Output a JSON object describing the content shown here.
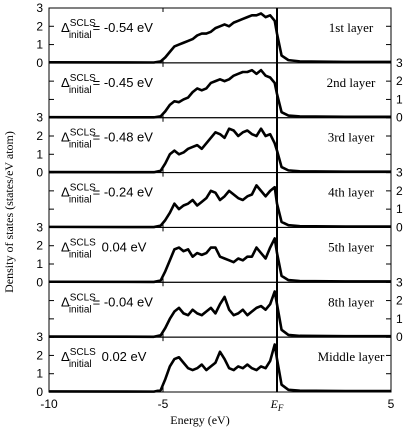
{
  "chart_data": {
    "type": "line",
    "xlabel": "Energy (eV)",
    "ylabel": "Density of states (states/eV atom)",
    "xlim": [
      -10,
      5
    ],
    "ylim": [
      0,
      3
    ],
    "x_ticks": [
      "-10",
      "-5",
      "0",
      "5"
    ],
    "x_tick_values": [
      -10,
      -5,
      0,
      5
    ],
    "fermi_label": "E",
    "fermi_sub": "F",
    "fermi_energy": 0,
    "y_tick_labels": [
      "0",
      "1",
      "2",
      "3"
    ],
    "grid": false,
    "annotation_prefix": "Δ",
    "annotation_sup": "SCLS",
    "annotation_sub": "initial",
    "panels": [
      {
        "name": "1st layer",
        "shift": "= -0.54 eV",
        "y_axis_side": "left",
        "x": [
          -5.4,
          -5.1,
          -4.9,
          -4.7,
          -4.5,
          -4.3,
          -4.1,
          -3.9,
          -3.7,
          -3.5,
          -3.3,
          -3.1,
          -2.9,
          -2.7,
          -2.5,
          -2.3,
          -2.1,
          -1.9,
          -1.7,
          -1.5,
          -1.3,
          -1.1,
          -0.9,
          -0.7,
          -0.5,
          -0.3,
          -0.1,
          0.0,
          0.2,
          0.5,
          1.0,
          3.0,
          5.0
        ],
        "y": [
          0.02,
          0.08,
          0.3,
          0.6,
          0.9,
          1.0,
          1.1,
          1.2,
          1.3,
          1.5,
          1.6,
          1.6,
          1.7,
          1.9,
          2.0,
          2.1,
          2.0,
          2.2,
          2.3,
          2.4,
          2.5,
          2.6,
          2.6,
          2.7,
          2.5,
          2.6,
          2.3,
          1.6,
          0.4,
          0.15,
          0.08,
          0.05,
          0.05
        ]
      },
      {
        "name": "2nd layer",
        "shift": "= -0.45 eV",
        "y_axis_side": "right",
        "x": [
          -5.4,
          -5.1,
          -4.9,
          -4.7,
          -4.5,
          -4.3,
          -4.1,
          -3.9,
          -3.7,
          -3.5,
          -3.3,
          -3.1,
          -2.9,
          -2.7,
          -2.5,
          -2.3,
          -2.1,
          -1.9,
          -1.7,
          -1.5,
          -1.3,
          -1.1,
          -0.9,
          -0.7,
          -0.5,
          -0.3,
          -0.1,
          0.0,
          0.2,
          0.5,
          1.0,
          3.0,
          5.0
        ],
        "y": [
          0.02,
          0.08,
          0.35,
          0.7,
          0.9,
          0.85,
          1.0,
          1.1,
          1.4,
          1.6,
          1.5,
          1.6,
          1.9,
          2.0,
          2.1,
          2.0,
          2.1,
          2.3,
          2.4,
          2.5,
          2.5,
          2.6,
          2.4,
          2.6,
          2.3,
          2.2,
          1.9,
          1.3,
          0.3,
          0.12,
          0.07,
          0.05,
          0.05
        ]
      },
      {
        "name": "3rd layer",
        "shift": "= -0.48 eV",
        "y_axis_side": "left",
        "x": [
          -5.4,
          -5.1,
          -4.9,
          -4.7,
          -4.5,
          -4.3,
          -4.1,
          -3.9,
          -3.7,
          -3.5,
          -3.3,
          -3.1,
          -2.9,
          -2.7,
          -2.5,
          -2.3,
          -2.1,
          -1.9,
          -1.7,
          -1.5,
          -1.3,
          -1.1,
          -0.9,
          -0.7,
          -0.5,
          -0.3,
          -0.1,
          0.0,
          0.2,
          0.5,
          1.0,
          3.0,
          5.0
        ],
        "y": [
          0.02,
          0.1,
          0.5,
          1.0,
          1.2,
          1.0,
          1.1,
          1.3,
          1.4,
          1.5,
          1.3,
          1.6,
          1.9,
          2.2,
          2.1,
          1.9,
          2.4,
          2.3,
          2.0,
          2.2,
          2.3,
          2.1,
          2.0,
          2.4,
          2.0,
          2.1,
          1.6,
          1.2,
          0.3,
          0.12,
          0.07,
          0.05,
          0.05
        ]
      },
      {
        "name": "4th layer",
        "shift": "= -0.24 eV",
        "y_axis_side": "right",
        "x": [
          -5.4,
          -5.1,
          -4.9,
          -4.7,
          -4.5,
          -4.3,
          -4.1,
          -3.9,
          -3.7,
          -3.5,
          -3.3,
          -3.1,
          -2.9,
          -2.7,
          -2.5,
          -2.3,
          -2.1,
          -1.9,
          -1.7,
          -1.5,
          -1.3,
          -1.1,
          -0.9,
          -0.7,
          -0.5,
          -0.3,
          -0.1,
          0.0,
          0.2,
          0.5,
          1.0,
          3.0,
          5.0
        ],
        "y": [
          0.02,
          0.1,
          0.4,
          0.8,
          1.3,
          1.0,
          1.2,
          1.3,
          1.5,
          1.2,
          1.4,
          1.6,
          2.0,
          1.9,
          1.5,
          1.7,
          2.0,
          1.8,
          1.6,
          1.5,
          1.7,
          1.8,
          2.3,
          2.0,
          1.7,
          2.0,
          2.2,
          1.3,
          0.3,
          0.12,
          0.07,
          0.05,
          0.05
        ]
      },
      {
        "name": "5th layer",
        "shift": "0.04 eV",
        "y_axis_side": "left",
        "x": [
          -5.4,
          -5.1,
          -4.9,
          -4.7,
          -4.5,
          -4.3,
          -4.1,
          -3.9,
          -3.7,
          -3.5,
          -3.3,
          -3.1,
          -2.9,
          -2.7,
          -2.5,
          -2.3,
          -2.1,
          -1.9,
          -1.7,
          -1.5,
          -1.3,
          -1.1,
          -0.9,
          -0.7,
          -0.5,
          -0.3,
          -0.1,
          0.0,
          0.2,
          0.5,
          1.0,
          3.0,
          5.0
        ],
        "y": [
          0.02,
          0.1,
          0.6,
          1.2,
          1.8,
          1.9,
          1.7,
          1.8,
          1.4,
          1.6,
          1.5,
          1.6,
          1.9,
          1.9,
          1.4,
          1.3,
          1.2,
          1.1,
          1.3,
          1.2,
          1.4,
          1.4,
          1.9,
          1.6,
          1.3,
          1.9,
          2.4,
          1.6,
          0.35,
          0.12,
          0.07,
          0.05,
          0.05
        ]
      },
      {
        "name": "8th layer",
        "shift": "= -0.04 eV",
        "y_axis_side": "right",
        "x": [
          -5.4,
          -5.1,
          -4.9,
          -4.7,
          -4.5,
          -4.3,
          -4.1,
          -3.9,
          -3.7,
          -3.5,
          -3.3,
          -3.1,
          -2.9,
          -2.7,
          -2.5,
          -2.3,
          -2.1,
          -1.9,
          -1.7,
          -1.5,
          -1.3,
          -1.1,
          -0.9,
          -0.7,
          -0.5,
          -0.3,
          -0.1,
          0.0,
          0.2,
          0.5,
          1.0,
          3.0,
          5.0
        ],
        "y": [
          0.02,
          0.1,
          0.5,
          1.0,
          1.4,
          1.6,
          1.3,
          1.2,
          1.5,
          1.3,
          1.2,
          1.4,
          1.6,
          1.3,
          1.8,
          2.2,
          1.5,
          1.2,
          1.3,
          1.5,
          1.2,
          1.4,
          1.6,
          1.7,
          1.5,
          1.8,
          2.5,
          1.8,
          0.4,
          0.12,
          0.07,
          0.05,
          0.05
        ]
      },
      {
        "name": "Middle layer",
        "shift": "0.02 eV",
        "y_axis_side": "left",
        "x": [
          -5.4,
          -5.1,
          -4.9,
          -4.7,
          -4.5,
          -4.3,
          -4.1,
          -3.9,
          -3.7,
          -3.5,
          -3.3,
          -3.1,
          -2.9,
          -2.7,
          -2.5,
          -2.3,
          -2.1,
          -1.9,
          -1.7,
          -1.5,
          -1.3,
          -1.1,
          -0.9,
          -0.7,
          -0.5,
          -0.3,
          -0.1,
          0.0,
          0.2,
          0.5,
          1.0,
          3.0,
          5.0
        ],
        "y": [
          0.02,
          0.1,
          0.7,
          1.4,
          1.8,
          1.9,
          1.6,
          1.3,
          1.2,
          1.3,
          1.5,
          1.2,
          1.4,
          1.6,
          2.2,
          1.8,
          1.3,
          1.2,
          1.4,
          1.3,
          1.5,
          1.3,
          1.2,
          1.4,
          1.3,
          1.7,
          2.6,
          1.8,
          0.4,
          0.12,
          0.07,
          0.05,
          0.05
        ]
      }
    ]
  }
}
